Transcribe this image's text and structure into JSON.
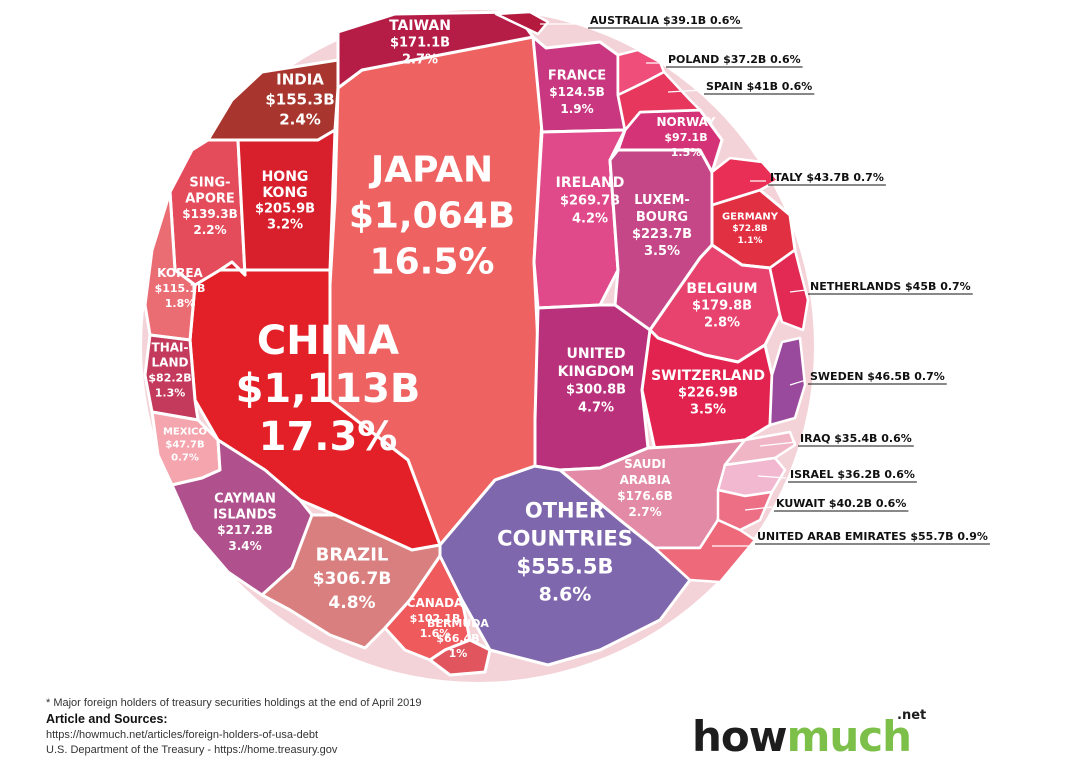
{
  "chart_data": {
    "type": "treemap",
    "title": "",
    "cells": [
      {
        "name": "JAPAN",
        "value_label": "$1,064B",
        "share": "16.5%",
        "color": "#ef6262"
      },
      {
        "name": "CHINA",
        "value_label": "$1,113B",
        "share": "17.3%",
        "color": "#e32027"
      },
      {
        "name": "TAIWAN",
        "value_label": "$171.1B",
        "share": "2.7%",
        "color": "#b51d47"
      },
      {
        "name": "INDIA",
        "value_label": "$155.3B",
        "share": "2.4%",
        "color": "#a8362e"
      },
      {
        "name": "SING-\nAPORE",
        "value_label": "$139.3B",
        "share": "2.2%",
        "color": "#e44b5b"
      },
      {
        "name": "HONG\nKONG",
        "value_label": "$205.9B",
        "share": "3.2%",
        "color": "#d8202c"
      },
      {
        "name": "KOREA",
        "value_label": "$115.1B",
        "share": "1.8%",
        "color": "#ea6d74"
      },
      {
        "name": "THAI-\nLAND",
        "value_label": "$82.2B",
        "share": "1.3%",
        "color": "#c43a5d"
      },
      {
        "name": "MEXICO",
        "value_label": "$47.7B",
        "share": "0.7%",
        "color": "#f4a5ae"
      },
      {
        "name": "CAYMAN\nISLANDS",
        "value_label": "$217.2B",
        "share": "3.4%",
        "color": "#b0508d"
      },
      {
        "name": "BRAZIL",
        "value_label": "$306.7B",
        "share": "4.8%",
        "color": "#d97f7f"
      },
      {
        "name": "CANADA",
        "value_label": "$102.1B",
        "share": "1.6%",
        "color": "#ef5a5d"
      },
      {
        "name": "BERMUDA",
        "value_label": "$66.4B",
        "share": "1%",
        "color": "#e0555e"
      },
      {
        "name": "OTHER\nCOUNTRIES",
        "value_label": "$555.5B",
        "share": "8.6%",
        "color": "#7f67ad"
      },
      {
        "name": "FRANCE",
        "value_label": "$124.5B",
        "share": "1.9%",
        "color": "#c8377f"
      },
      {
        "name": "IRELAND",
        "value_label": "$269.7B",
        "share": "4.2%",
        "color": "#e0498a"
      },
      {
        "name": "LUXEM-\nBOURG",
        "value_label": "$223.7B",
        "share": "3.5%",
        "color": "#c64787"
      },
      {
        "name": "NORWAY",
        "value_label": "$97.1B",
        "share": "1.5%",
        "color": "#d43477"
      },
      {
        "name": "GERMANY",
        "value_label": "$72.8B",
        "share": "1.1%",
        "color": "#e23043"
      },
      {
        "name": "BELGIUM",
        "value_label": "$179.8B",
        "share": "2.8%",
        "color": "#e8436e"
      },
      {
        "name": "UNITED\nKINGDOM",
        "value_label": "$300.8B",
        "share": "4.7%",
        "color": "#b9317a"
      },
      {
        "name": "SWITZERLAND",
        "value_label": "$226.9B",
        "share": "3.5%",
        "color": "#e3234f"
      },
      {
        "name": "SAUDI\nARABIA",
        "value_label": "$176.6B",
        "share": "2.7%",
        "color": "#e28aa6"
      }
    ],
    "external_labels": [
      {
        "name": "AUSTRALIA",
        "value_label": "$39.1B",
        "share": "0.6%",
        "color": "#b4193e"
      },
      {
        "name": "POLAND",
        "value_label": "$37.2B",
        "share": "0.6%",
        "color": "#f04e7a"
      },
      {
        "name": "SPAIN",
        "value_label": "$41B",
        "share": "0.6%",
        "color": "#e8375c"
      },
      {
        "name": "ITALY",
        "value_label": "$43.7B",
        "share": "0.7%",
        "color": "#ea2f56"
      },
      {
        "name": "NETHERLANDS",
        "value_label": "$45B",
        "share": "0.7%",
        "color": "#e32a55"
      },
      {
        "name": "SWEDEN",
        "value_label": "$46.5B",
        "share": "0.7%",
        "color": "#9a4a9c"
      },
      {
        "name": "IRAQ",
        "value_label": "$35.4B",
        "share": "0.6%",
        "color": "#f0b6c6"
      },
      {
        "name": "ISRAEL",
        "value_label": "$36.2B",
        "share": "0.6%",
        "color": "#f1b8cf"
      },
      {
        "name": "KUWAIT",
        "value_label": "$40.2B",
        "share": "0.6%",
        "color": "#ec6f86"
      },
      {
        "name": "UNITED ARAB EMIRATES",
        "value_label": "$55.7B",
        "share": "0.9%",
        "color": "#ee6a7b"
      }
    ]
  },
  "footnote": {
    "note": "* Major foreign holders of treasury securities holdings at the end of April 2019",
    "heading": "Article and Sources:",
    "source_1": "https://howmuch.net/articles/foreign-holders-of-usa-debt",
    "source_2": "U.S. Department of the Treasury - https://home.treasury.gov"
  },
  "logo": {
    "how": "how",
    "much": "much",
    "net": ".net"
  }
}
